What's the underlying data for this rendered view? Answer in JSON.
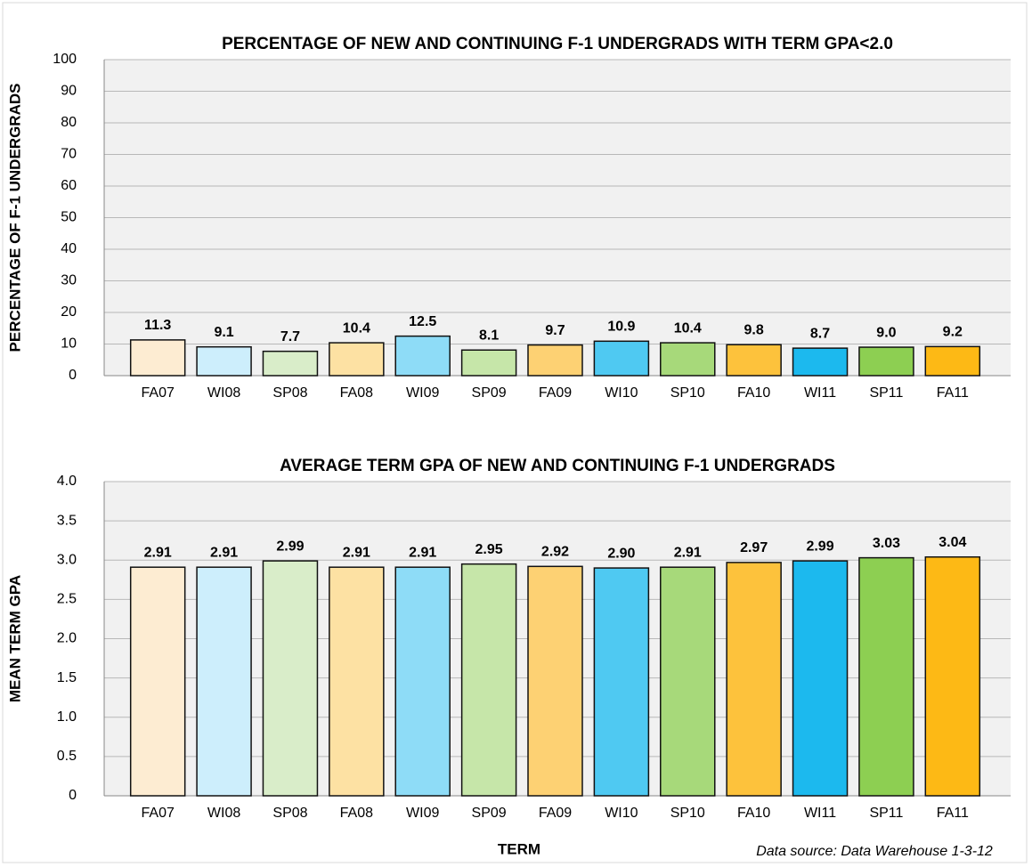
{
  "chart_data": [
    {
      "type": "bar",
      "title": "PERCENTAGE OF NEW AND CONTINUING F-1 UNDERGRADS WITH TERM GPA<2.0",
      "y_label": "PERCENTAGE OF F-1 UNDERGRADS",
      "categories": [
        "FA07",
        "WI08",
        "SP08",
        "FA08",
        "WI09",
        "SP09",
        "FA09",
        "WI10",
        "SP10",
        "FA10",
        "WI11",
        "SP11",
        "FA11"
      ],
      "values": [
        11.3,
        9.1,
        7.7,
        10.4,
        12.5,
        8.1,
        9.7,
        10.9,
        10.4,
        9.8,
        8.7,
        9.0,
        9.2
      ],
      "value_labels": [
        "11.3",
        "9.1",
        "7.7",
        "10.4",
        "12.5",
        "8.1",
        "9.7",
        "10.9",
        "10.4",
        "9.8",
        "8.7",
        "9.0",
        "9.2"
      ],
      "colors": [
        "#fdecd2",
        "#cdeefc",
        "#d9edc9",
        "#fde1a3",
        "#8edcf7",
        "#c6e6a9",
        "#fdd173",
        "#4fc9f2",
        "#a7d97a",
        "#fdc23c",
        "#1cb9ee",
        "#8dcf52",
        "#fdb915"
      ],
      "ylim": [
        0,
        100
      ],
      "yticks": [
        0,
        10,
        20,
        30,
        40,
        50,
        60,
        70,
        80,
        90,
        100
      ],
      "grid": true
    },
    {
      "type": "bar",
      "title": "AVERAGE TERM GPA OF NEW AND CONTINUING F-1 UNDERGRADS",
      "y_label": "MEAN TERM GPA",
      "x_label": "TERM",
      "note": "Data source: Data Warehouse 1-3-12",
      "categories": [
        "FA07",
        "WI08",
        "SP08",
        "FA08",
        "WI09",
        "SP09",
        "FA09",
        "WI10",
        "SP10",
        "FA10",
        "WI11",
        "SP11",
        "FA11"
      ],
      "values": [
        2.91,
        2.91,
        2.99,
        2.91,
        2.91,
        2.95,
        2.92,
        2.9,
        2.91,
        2.97,
        2.99,
        3.03,
        3.04
      ],
      "value_labels": [
        "2.91",
        "2.91",
        "2.99",
        "2.91",
        "2.91",
        "2.95",
        "2.92",
        "2.90",
        "2.91",
        "2.97",
        "2.99",
        "3.03",
        "3.04"
      ],
      "colors": [
        "#fdecd2",
        "#cdeefc",
        "#d9edc9",
        "#fde1a3",
        "#8edcf7",
        "#c6e6a9",
        "#fdd173",
        "#4fc9f2",
        "#a7d97a",
        "#fdc23c",
        "#1cb9ee",
        "#8dcf52",
        "#fdb915"
      ],
      "ylim": [
        0,
        4
      ],
      "yticks": [
        0,
        0.5,
        {
          "value": 1,
          "label": "1.0"
        },
        1.5,
        {
          "value": 2,
          "label": "2.0"
        },
        2.5,
        {
          "value": 3,
          "label": "3.0"
        },
        3.5,
        {
          "value": 4,
          "label": "4.0"
        }
      ],
      "grid": true
    }
  ]
}
